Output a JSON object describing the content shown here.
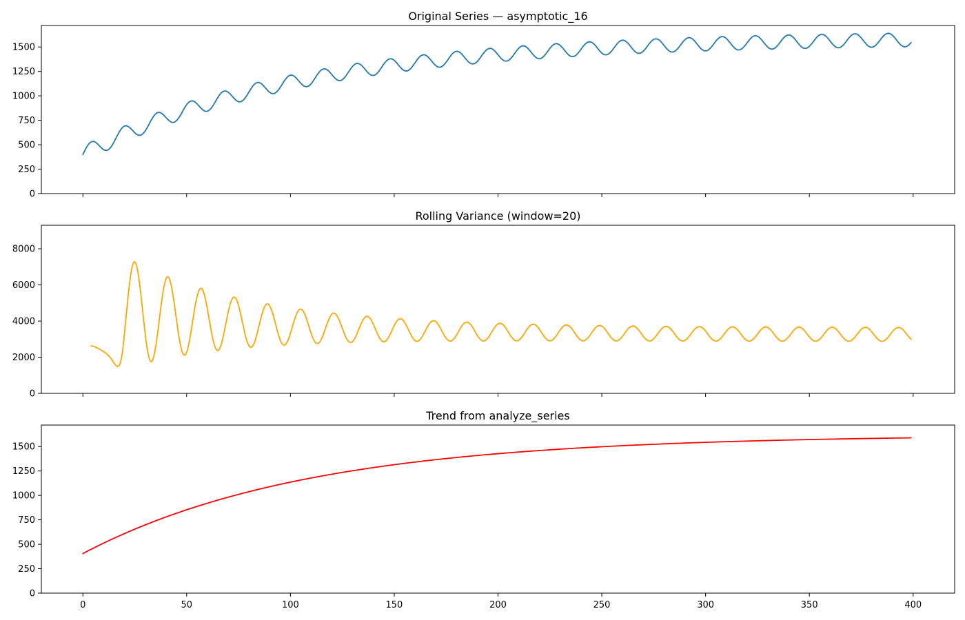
{
  "figure": {
    "shared_x_ticks": [
      0,
      50,
      100,
      150,
      200,
      250,
      300,
      350,
      400
    ]
  },
  "chart_data": [
    {
      "type": "line",
      "title": "Original Series — asymptotic_16",
      "xlabel": "",
      "ylabel": "",
      "xlim": [
        -20,
        420
      ],
      "ylim": [
        0,
        1720
      ],
      "yticks": [
        0,
        250,
        500,
        750,
        1000,
        1250,
        1500
      ],
      "grid": false,
      "legend": "none",
      "series": [
        {
          "color": "#1f77b4",
          "model": {
            "kind": "trend_plus_sine",
            "start": 400,
            "asymptote": 1600,
            "rate": 0.0095,
            "amplitude_start": 85,
            "amplitude_end": 70,
            "period": 16
          },
          "x_range": [
            0,
            399
          ]
        }
      ]
    },
    {
      "type": "line",
      "title": "Rolling Variance (window=20)",
      "xlabel": "",
      "ylabel": "",
      "xlim": [
        -20,
        420
      ],
      "ylim": [
        0,
        9300
      ],
      "yticks": [
        0,
        2000,
        4000,
        6000,
        8000
      ],
      "grid": false,
      "legend": "none",
      "series": [
        {
          "color": "#ffa500",
          "x_range": [
            4,
            399
          ],
          "x": [
            4,
            5,
            6,
            7,
            8,
            9,
            10,
            11,
            12,
            13,
            14,
            15,
            16,
            17,
            18,
            19,
            20,
            21,
            22,
            23,
            24,
            25,
            26,
            27,
            28,
            29,
            30,
            31,
            32,
            33,
            34,
            35,
            36,
            37,
            38,
            39,
            40,
            41,
            42,
            43,
            44,
            45,
            46,
            47,
            48,
            49,
            50,
            51,
            52,
            53,
            54,
            55,
            56,
            57,
            58,
            59,
            60,
            61,
            62,
            63,
            64,
            65,
            66,
            67,
            68,
            69,
            70,
            71,
            72,
            73,
            74,
            75,
            76,
            77,
            78,
            79,
            80,
            81,
            82,
            83,
            84,
            85,
            86,
            87,
            88,
            89,
            90,
            91,
            92,
            93,
            94,
            95,
            96,
            97,
            98,
            99,
            100,
            101,
            102,
            103,
            104,
            105,
            106,
            107,
            108,
            109,
            110,
            111,
            112,
            113,
            114,
            115,
            116,
            117,
            118,
            119,
            120,
            121,
            122,
            123,
            124,
            125,
            126,
            127,
            128,
            129,
            130,
            131,
            132,
            133,
            134,
            135,
            136,
            137,
            138,
            139,
            140,
            141,
            142,
            143,
            144,
            145,
            146,
            147,
            148,
            149,
            150,
            151,
            152,
            153,
            154,
            155,
            156,
            157,
            158,
            159,
            160,
            161,
            162,
            163,
            164,
            165,
            166,
            167,
            168,
            169,
            170,
            171,
            172,
            173,
            174,
            175,
            176,
            177,
            178,
            179,
            180,
            181,
            182,
            183,
            184,
            185,
            186,
            187,
            188,
            189,
            190,
            191,
            192,
            193,
            194,
            195,
            196,
            197,
            198,
            199,
            200,
            201,
            202,
            203,
            204,
            205,
            206,
            207,
            208,
            209,
            210,
            211,
            212,
            213,
            214,
            215,
            216,
            217,
            218,
            219,
            220,
            221,
            222,
            223,
            224,
            225,
            226,
            227,
            228,
            229,
            230,
            231,
            232,
            233,
            234,
            235,
            236,
            237,
            238,
            239,
            240,
            241,
            242,
            243,
            244,
            245,
            246,
            247,
            248,
            249,
            250,
            251,
            252,
            253,
            254,
            255,
            256,
            257,
            258,
            259,
            260,
            261,
            262,
            263,
            264,
            265,
            266,
            267,
            268,
            269,
            270,
            271,
            272,
            273,
            274,
            275,
            276,
            277,
            278,
            279,
            280,
            281,
            282,
            283,
            284,
            285,
            286,
            287,
            288,
            289,
            290,
            291,
            292,
            293,
            294,
            295,
            296,
            297,
            298,
            299,
            300,
            301,
            302,
            303,
            304,
            305,
            306,
            307,
            308,
            309,
            310,
            311,
            312,
            313,
            314,
            315,
            316,
            317,
            318,
            319,
            320,
            321,
            322,
            323,
            324,
            325,
            326,
            327,
            328,
            329,
            330,
            331,
            332,
            333,
            334,
            335,
            336,
            337,
            338,
            339,
            340,
            341,
            342,
            343,
            344,
            345,
            346,
            347,
            348,
            349,
            350,
            351,
            352,
            353,
            354,
            355,
            356,
            357,
            358,
            359,
            360,
            361,
            362,
            363,
            364,
            365,
            366,
            367,
            368,
            369,
            370,
            371,
            372,
            373,
            374,
            375,
            376,
            377,
            378,
            379,
            380,
            381,
            382,
            383,
            384,
            385,
            386,
            387,
            388,
            389,
            390,
            391,
            392,
            393,
            394,
            395,
            396,
            397,
            398,
            399
          ],
          "model": {
            "kind": "damped_oscillation",
            "baseline_start": 4800,
            "baseline_end": 3250,
            "baseline_rate": 0.012,
            "amplitude_start": 4300,
            "amplitude_end": 380,
            "amplitude_rate": 0.018,
            "period": 16,
            "phase_peak_x": 25,
            "early_dip": {
              "x": 14,
              "value": 1400
            }
          }
        }
      ]
    },
    {
      "type": "line",
      "title": "Trend from analyze_series",
      "xlabel": "",
      "ylabel": "",
      "xlim": [
        -20,
        420
      ],
      "ylim": [
        0,
        1720
      ],
      "yticks": [
        0,
        250,
        500,
        750,
        1000,
        1250,
        1500
      ],
      "xticks": [
        0,
        50,
        100,
        150,
        200,
        250,
        300,
        350,
        400
      ],
      "grid": false,
      "legend": "none",
      "series": [
        {
          "color": "#ff0000",
          "model": {
            "kind": "asymptotic",
            "start": 405,
            "asymptote": 1620,
            "rate": 0.0092
          },
          "x_range": [
            0,
            399
          ]
        }
      ]
    }
  ]
}
